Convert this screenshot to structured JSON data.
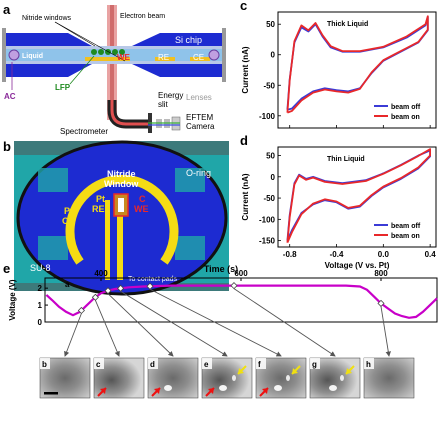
{
  "panel_labels": [
    "a",
    "b",
    "c",
    "d",
    "e"
  ],
  "panel_a": {
    "nitride_windows": "Nitride windows",
    "electron_beam": "Electron beam",
    "si_chip": "Si chip",
    "liquid": "Liquid",
    "we": "WE",
    "re": "RE",
    "ce": "CE",
    "ac": "AC",
    "lfp": "LFP",
    "energy_slit": "Energy\nslit",
    "lenses": "Lenses",
    "eftem_camera": "EFTEM\nCamera",
    "spectrometer": "Spectrometer"
  },
  "panel_b": {
    "o_ring": "O-ring",
    "pt_ce": "Pt\nCE",
    "pt_re": "Pt\nRE",
    "nitride_window": "Nitride\nWindow",
    "c_we": "C\nWE",
    "su8": "SU-8",
    "contact_pads": "To contact pads"
  },
  "colors": {
    "beam_off": "#3b3bd6",
    "beam_on": "#e8282a",
    "voltage_trace": "#c800c8",
    "chip_blue": "#1d2bd1",
    "electrode_yellow": "#f5dc14",
    "teal": "#20a6a8"
  },
  "chart_data": [
    {
      "type": "line",
      "panel": "c",
      "title": "Thick Liquid",
      "xlabel": "",
      "ylabel": "Current (nA)",
      "xlim": [
        -0.9,
        0.45
      ],
      "ylim": [
        -120,
        70
      ],
      "yticks": [
        50,
        0,
        -50,
        -100
      ],
      "legend": "bottom-right",
      "series": [
        {
          "name": "beam off",
          "color": "#3b3bd6",
          "x": [
            -0.82,
            -0.8,
            -0.76,
            -0.7,
            -0.64,
            -0.58,
            -0.52,
            -0.45,
            -0.35,
            -0.2,
            0,
            0.2,
            0.36,
            0.38,
            0.38,
            0.3,
            0.2,
            0.1,
            0,
            -0.1,
            -0.2,
            -0.3,
            -0.4,
            -0.5,
            -0.6,
            -0.7,
            -0.78,
            -0.82
          ],
          "y": [
            -90,
            -40,
            20,
            45,
            38,
            50,
            30,
            12,
            5,
            5,
            12,
            28,
            48,
            62,
            40,
            20,
            10,
            0,
            -10,
            -30,
            -55,
            -60,
            -58,
            -55,
            -60,
            -72,
            -88,
            -90
          ]
        },
        {
          "name": "beam on",
          "color": "#e8282a",
          "x": [
            -0.82,
            -0.8,
            -0.76,
            -0.7,
            -0.64,
            -0.58,
            -0.52,
            -0.45,
            -0.35,
            -0.2,
            0,
            0.2,
            0.36,
            0.38,
            0.38,
            0.3,
            0.2,
            0.1,
            0,
            -0.1,
            -0.2,
            -0.3,
            -0.4,
            -0.5,
            -0.6,
            -0.7,
            -0.78,
            -0.82
          ],
          "y": [
            -95,
            -42,
            22,
            48,
            40,
            52,
            32,
            14,
            6,
            6,
            13,
            30,
            50,
            63,
            41,
            21,
            11,
            1,
            -9,
            -29,
            -56,
            -62,
            -60,
            -57,
            -62,
            -75,
            -92,
            -95
          ]
        }
      ]
    },
    {
      "type": "line",
      "panel": "d",
      "title": "Thin Liquid",
      "xlabel": "Voltage (V vs. Pt)",
      "ylabel": "Current (nA)",
      "xlim": [
        -0.9,
        0.45
      ],
      "ylim": [
        -165,
        70
      ],
      "yticks": [
        50,
        0,
        -50,
        -100,
        -150
      ],
      "xticks": [
        -0.8,
        -0.4,
        0.0,
        0.4
      ],
      "legend": "bottom-right",
      "series": [
        {
          "name": "beam off",
          "color": "#3b3bd6",
          "x": [
            -0.82,
            -0.8,
            -0.76,
            -0.72,
            -0.66,
            -0.6,
            -0.5,
            -0.35,
            -0.15,
            0,
            0.15,
            0.3,
            0.4,
            0.4,
            0.3,
            0.15,
            0,
            -0.1,
            -0.2,
            -0.3,
            -0.4,
            -0.5,
            -0.6,
            -0.7,
            -0.78,
            -0.82
          ],
          "y": [
            -150,
            -90,
            -15,
            5,
            -5,
            0,
            -10,
            -15,
            -8,
            8,
            28,
            50,
            62,
            48,
            20,
            -5,
            -25,
            -45,
            -70,
            -75,
            -60,
            -55,
            -65,
            -85,
            -125,
            -150
          ]
        },
        {
          "name": "beam on",
          "color": "#e8282a",
          "x": [
            -0.82,
            -0.8,
            -0.76,
            -0.72,
            -0.66,
            -0.6,
            -0.5,
            -0.35,
            -0.15,
            0,
            0.15,
            0.3,
            0.4,
            0.4,
            0.3,
            0.15,
            0,
            -0.1,
            -0.2,
            -0.3,
            -0.4,
            -0.5,
            -0.6,
            -0.7,
            -0.78,
            -0.82
          ],
          "y": [
            -155,
            -95,
            -18,
            3,
            -7,
            -2,
            -12,
            -17,
            -10,
            7,
            27,
            49,
            65,
            50,
            22,
            -3,
            -23,
            -43,
            -68,
            -73,
            -58,
            -53,
            -63,
            -88,
            -130,
            -155
          ]
        }
      ]
    },
    {
      "type": "line",
      "panel": "e",
      "title": "",
      "xlabel": "Time (s)",
      "ylabel": "Voltage (V)",
      "xlim": [
        320,
        880
      ],
      "ylim": [
        0,
        2.6
      ],
      "yticks": [
        0,
        1,
        2
      ],
      "xticks": [
        400,
        600,
        800
      ],
      "series": [
        {
          "name": "",
          "color": "#c800c8",
          "x": [
            322,
            330,
            340,
            350,
            360,
            370,
            380,
            390,
            400,
            410,
            420,
            440,
            460,
            500,
            550,
            600,
            650,
            700,
            750,
            770,
            780,
            790,
            800,
            810,
            820,
            830,
            840,
            850,
            860,
            870,
            880
          ],
          "y": [
            1.6,
            1.3,
            0.9,
            0.6,
            0.4,
            0.6,
            1.0,
            1.4,
            1.7,
            1.85,
            1.95,
            2.05,
            2.1,
            2.15,
            2.15,
            2.15,
            2.15,
            2.15,
            2.15,
            2.1,
            1.9,
            1.5,
            1.1,
            0.8,
            0.5,
            0.35,
            0.25,
            0.3,
            0.6,
            1.0,
            1.4
          ]
        }
      ],
      "frame_markers": [
        "a",
        "b",
        "c",
        "d",
        "e",
        "f",
        "g",
        "h"
      ]
    }
  ],
  "frames": [
    "b",
    "c",
    "d",
    "e",
    "f",
    "g",
    "h"
  ]
}
